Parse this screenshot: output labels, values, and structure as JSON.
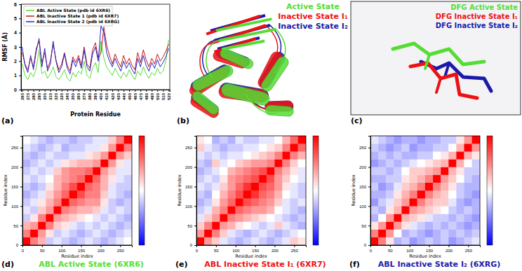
{
  "chart_data": [
    {
      "type": "line",
      "panel_label": "(a)",
      "x_label": "Protein Residue",
      "y_label": "RMSF (Å)",
      "x": [
        260,
        265,
        270,
        275,
        280,
        285,
        290,
        295,
        300,
        305,
        310,
        315,
        320,
        325,
        330,
        335,
        340,
        345,
        350,
        355,
        360,
        365,
        370,
        375,
        380,
        385,
        390,
        395,
        400,
        405,
        410,
        415,
        420,
        425,
        430,
        435,
        440,
        445,
        450,
        455,
        460,
        465,
        470,
        475,
        480,
        485,
        490,
        495,
        500,
        505,
        510,
        515,
        520
      ],
      "xlim": [
        258,
        522
      ],
      "xticks": [
        260,
        270,
        280,
        290,
        300,
        310,
        320,
        330,
        340,
        350,
        360,
        370,
        380,
        390,
        400,
        410,
        420,
        430,
        440,
        450,
        460,
        470,
        480,
        490,
        500,
        510,
        520
      ],
      "ylim": [
        0,
        6
      ],
      "yticks": [
        0,
        1,
        2,
        3,
        4,
        5,
        6
      ],
      "legend": "upper left",
      "series": [
        {
          "name": "ABL Active State (pdb id 6XR6)",
          "color": "#55dd33",
          "values": [
            1.8,
            1.0,
            0.7,
            1.2,
            0.9,
            1.5,
            2.8,
            1.1,
            1.3,
            0.8,
            1.1,
            1.6,
            0.9,
            0.7,
            1.0,
            1.4,
            0.8,
            0.6,
            1.2,
            0.9,
            1.3,
            1.1,
            2.0,
            1.0,
            0.8,
            1.5,
            1.9,
            1.2,
            3.4,
            2.2,
            1.6,
            1.3,
            1.0,
            1.5,
            1.1,
            0.8,
            1.2,
            0.9,
            1.4,
            1.0,
            0.7,
            1.3,
            1.0,
            1.6,
            1.1,
            0.8,
            1.2,
            1.0,
            1.5,
            1.1,
            1.3,
            2.0,
            3.5
          ]
        },
        {
          "name": "ABL Inactive State 1 (pdb id 6XR7)",
          "color": "#c81414",
          "values": [
            2.6,
            1.8,
            1.4,
            2.2,
            1.6,
            2.9,
            3.4,
            1.9,
            2.6,
            1.5,
            2.0,
            3.2,
            2.1,
            1.4,
            1.8,
            2.6,
            1.7,
            1.3,
            2.3,
            1.9,
            2.4,
            1.7,
            3.0,
            1.8,
            1.5,
            2.8,
            3.3,
            2.2,
            2.6,
            4.4,
            3.1,
            2.4,
            1.8,
            2.5,
            2.0,
            1.6,
            2.4,
            1.8,
            2.2,
            1.7,
            1.4,
            2.6,
            1.9,
            2.8,
            2.1,
            1.6,
            2.2,
            1.8,
            2.5,
            2.0,
            2.3,
            2.7,
            3.2
          ]
        },
        {
          "name": "ABL Inactive State 2 (pdb id 6XRG)",
          "color": "#2424c8",
          "values": [
            3.0,
            1.7,
            1.2,
            2.4,
            1.4,
            2.7,
            3.6,
            1.6,
            2.9,
            1.3,
            1.8,
            3.4,
            2.0,
            1.2,
            1.6,
            2.5,
            1.5,
            1.1,
            2.1,
            1.6,
            2.2,
            1.5,
            2.8,
            1.6,
            1.3,
            2.5,
            3.0,
            2.0,
            4.5,
            4.0,
            2.6,
            2.0,
            1.6,
            2.2,
            1.7,
            1.3,
            2.0,
            1.5,
            1.9,
            1.4,
            1.1,
            2.2,
            1.6,
            2.4,
            1.7,
            1.3,
            1.9,
            1.5,
            2.1,
            1.6,
            1.9,
            2.3,
            2.9
          ]
        }
      ]
    },
    {
      "type": "heatmap",
      "panel_label": "(d)",
      "title": "ABL Active State (6XR6)",
      "x_label": "Residue index",
      "y_label": "Residue index",
      "bins": [
        0,
        20,
        40,
        60,
        80,
        100,
        120,
        140,
        160,
        180,
        200,
        220,
        240,
        260,
        280
      ],
      "xlim": [
        0,
        280
      ],
      "ylim": [
        0,
        280
      ],
      "xticks": [
        0,
        50,
        100,
        150,
        200,
        250
      ],
      "yticks": [
        0,
        50,
        100,
        150,
        200,
        250
      ],
      "color_range": [
        -1,
        1
      ],
      "cells": [
        [
          1,
          0.5,
          0.3,
          -0.2,
          -0.1,
          -0.2,
          -0.3,
          -0.2,
          -0.1,
          -0.2,
          -0.3,
          -0.2,
          -0.1,
          0
        ],
        [
          0.5,
          1,
          0.4,
          0.1,
          -0.2,
          -0.1,
          -0.2,
          -0.3,
          -0.2,
          -0.1,
          -0.2,
          -0.3,
          -0.2,
          -0.1
        ],
        [
          0.3,
          0.4,
          1,
          0.5,
          0.2,
          0.1,
          -0.1,
          -0.2,
          -0.1,
          -0.2,
          -0.1,
          -0.2,
          -0.3,
          -0.2
        ],
        [
          -0.2,
          0.1,
          0.5,
          1,
          0.4,
          0.3,
          0.2,
          0.1,
          0,
          -0.1,
          -0.2,
          -0.1,
          -0.2,
          -0.3
        ],
        [
          -0.1,
          -0.2,
          0.2,
          0.4,
          1,
          0.5,
          0.4,
          0.3,
          0.3,
          0.2,
          -0.1,
          -0.2,
          -0.1,
          -0.2
        ],
        [
          -0.2,
          -0.1,
          0.1,
          0.3,
          0.5,
          1,
          0.6,
          0.5,
          0.4,
          0.4,
          0.1,
          -0.2,
          -0.3,
          -0.2
        ],
        [
          -0.3,
          -0.2,
          -0.1,
          0.2,
          0.4,
          0.6,
          1,
          0.7,
          0.5,
          0.5,
          0.2,
          -0.1,
          -0.2,
          -0.3
        ],
        [
          -0.2,
          -0.3,
          -0.2,
          0.1,
          0.3,
          0.5,
          0.7,
          1,
          0.6,
          0.5,
          0.3,
          -0.1,
          -0.2,
          -0.2
        ],
        [
          -0.1,
          -0.2,
          -0.1,
          0,
          0.3,
          0.4,
          0.5,
          0.6,
          1,
          0.6,
          0.3,
          0.1,
          -0.1,
          -0.2
        ],
        [
          -0.2,
          -0.1,
          -0.2,
          -0.1,
          0.2,
          0.4,
          0.5,
          0.5,
          0.6,
          1,
          0.4,
          0.2,
          -0.1,
          -0.1
        ],
        [
          -0.3,
          -0.2,
          -0.1,
          -0.2,
          -0.1,
          0.1,
          0.2,
          0.3,
          0.3,
          0.4,
          1,
          0.4,
          0.1,
          -0.1
        ],
        [
          -0.2,
          -0.3,
          -0.2,
          -0.1,
          -0.2,
          -0.2,
          -0.1,
          -0.1,
          0.1,
          0.2,
          0.4,
          1,
          0.4,
          0.2
        ],
        [
          -0.1,
          -0.2,
          -0.3,
          -0.2,
          -0.1,
          -0.3,
          -0.2,
          -0.2,
          -0.1,
          -0.1,
          0.1,
          0.4,
          1,
          0.5
        ],
        [
          0,
          -0.1,
          -0.2,
          -0.3,
          -0.2,
          -0.2,
          -0.3,
          -0.2,
          -0.2,
          -0.1,
          -0.1,
          0.2,
          0.5,
          1
        ]
      ]
    },
    {
      "type": "heatmap",
      "panel_label": "(e)",
      "title": "ABL Inactive State I₁ (6XR7)",
      "x_label": "Residue index",
      "y_label": "Residue index",
      "bins": [
        0,
        20,
        40,
        60,
        80,
        100,
        120,
        140,
        160,
        180,
        200,
        220,
        240,
        260,
        280
      ],
      "xlim": [
        0,
        280
      ],
      "ylim": [
        0,
        280
      ],
      "xticks": [
        0,
        50,
        100,
        150,
        200,
        250
      ],
      "yticks": [
        0,
        50,
        100,
        150,
        200,
        250
      ],
      "color_range": [
        -1,
        1
      ],
      "cells": [
        [
          1,
          0.4,
          0.2,
          -0.1,
          -0.2,
          -0.3,
          -0.2,
          -0.1,
          -0.2,
          -0.3,
          -0.2,
          -0.1,
          0.2,
          0.1
        ],
        [
          0.4,
          1,
          0.5,
          0.2,
          -0.1,
          -0.2,
          -0.3,
          -0.2,
          -0.1,
          -0.2,
          -0.3,
          -0.2,
          -0.1,
          0
        ],
        [
          0.2,
          0.5,
          1,
          0.4,
          0.3,
          0.1,
          0,
          -0.1,
          -0.2,
          -0.1,
          0.2,
          -0.1,
          -0.2,
          -0.3
        ],
        [
          -0.1,
          0.2,
          0.4,
          1,
          0.5,
          0.4,
          0.3,
          0.2,
          0.1,
          0,
          -0.1,
          -0.2,
          -0.3,
          -0.2
        ],
        [
          -0.2,
          -0.1,
          0.3,
          0.5,
          1,
          0.6,
          0.5,
          0.4,
          0.4,
          0.3,
          0,
          -0.1,
          -0.2,
          -0.3
        ],
        [
          -0.3,
          -0.2,
          0.1,
          0.4,
          0.6,
          1,
          0.7,
          0.6,
          0.5,
          0.4,
          0.2,
          -0.1,
          -0.2,
          -0.1
        ],
        [
          -0.2,
          -0.3,
          0,
          0.3,
          0.5,
          0.7,
          1,
          0.8,
          0.6,
          0.5,
          0.3,
          0,
          -0.1,
          -0.2
        ],
        [
          -0.1,
          -0.2,
          -0.1,
          0.2,
          0.4,
          0.6,
          0.8,
          1,
          0.7,
          0.6,
          0.4,
          0.1,
          -0.1,
          -0.2
        ],
        [
          -0.2,
          -0.1,
          -0.2,
          0.1,
          0.4,
          0.5,
          0.6,
          0.7,
          1,
          0.7,
          0.4,
          0.2,
          0,
          -0.1
        ],
        [
          -0.3,
          -0.2,
          -0.1,
          0,
          0.3,
          0.4,
          0.5,
          0.6,
          0.7,
          1,
          0.5,
          0.3,
          0.1,
          -0.1
        ],
        [
          -0.2,
          -0.3,
          0.2,
          -0.1,
          0,
          0.2,
          0.3,
          0.4,
          0.4,
          0.5,
          1,
          0.5,
          0.2,
          0
        ],
        [
          -0.1,
          -0.2,
          -0.1,
          -0.2,
          -0.1,
          -0.1,
          0,
          0.1,
          0.2,
          0.3,
          0.5,
          1,
          0.5,
          0.3
        ],
        [
          0.2,
          -0.1,
          -0.2,
          -0.3,
          -0.2,
          -0.2,
          -0.1,
          -0.1,
          0,
          0.1,
          0.2,
          0.5,
          1,
          0.6
        ],
        [
          0.1,
          0,
          -0.3,
          -0.2,
          -0.3,
          -0.1,
          -0.2,
          -0.2,
          -0.1,
          -0.1,
          0,
          0.3,
          0.6,
          1
        ]
      ]
    },
    {
      "type": "heatmap",
      "panel_label": "(f)",
      "title": "ABL Inactive State I₂ (6XRG)",
      "x_label": "Residue index",
      "y_label": "Residue index",
      "bins": [
        0,
        20,
        40,
        60,
        80,
        100,
        120,
        140,
        160,
        180,
        200,
        220,
        240,
        260,
        280
      ],
      "xlim": [
        0,
        280
      ],
      "ylim": [
        0,
        280
      ],
      "xticks": [
        0,
        50,
        100,
        150,
        200,
        250
      ],
      "yticks": [
        0,
        50,
        100,
        150,
        200,
        250
      ],
      "color_range": [
        -1,
        1
      ],
      "cells": [
        [
          1,
          0.5,
          0.1,
          -0.3,
          -0.2,
          -0.4,
          -0.3,
          -0.2,
          -0.3,
          -0.2,
          -0.4,
          -0.3,
          -0.2,
          -0.1
        ],
        [
          0.5,
          1,
          0.4,
          0,
          -0.3,
          -0.2,
          -0.3,
          -0.4,
          -0.3,
          -0.2,
          -0.3,
          -0.2,
          -0.3,
          -0.2
        ],
        [
          0.1,
          0.4,
          1,
          0.4,
          0.1,
          -0.1,
          -0.2,
          -0.3,
          -0.2,
          -0.3,
          -0.2,
          -0.3,
          -0.4,
          -0.3
        ],
        [
          -0.3,
          0,
          0.4,
          1,
          0.3,
          0.2,
          0.1,
          -0.1,
          -0.2,
          -0.2,
          -0.3,
          -0.2,
          -0.3,
          -0.4
        ],
        [
          -0.2,
          -0.3,
          0.1,
          0.3,
          1,
          0.4,
          0.3,
          0.2,
          0.1,
          0,
          -0.2,
          -0.3,
          -0.2,
          -0.3
        ],
        [
          -0.4,
          -0.2,
          -0.1,
          0.2,
          0.4,
          1,
          0.5,
          0.3,
          0.2,
          0.2,
          -0.1,
          -0.3,
          -0.4,
          -0.3
        ],
        [
          -0.3,
          -0.3,
          -0.2,
          0.1,
          0.3,
          0.5,
          1,
          0.5,
          0.3,
          0.2,
          0,
          -0.2,
          -0.3,
          -0.4
        ],
        [
          -0.2,
          -0.4,
          -0.3,
          -0.1,
          0.2,
          0.3,
          0.5,
          1,
          0.5,
          0.3,
          0.1,
          -0.2,
          -0.3,
          -0.3
        ],
        [
          -0.3,
          -0.3,
          -0.2,
          -0.2,
          0.1,
          0.2,
          0.3,
          0.5,
          1,
          0.4,
          0.2,
          0,
          -0.2,
          -0.3
        ],
        [
          -0.2,
          -0.2,
          -0.3,
          -0.2,
          0,
          0.2,
          0.2,
          0.3,
          0.4,
          1,
          0.3,
          0.1,
          -0.2,
          -0.2
        ],
        [
          -0.4,
          -0.3,
          -0.2,
          -0.3,
          -0.2,
          -0.1,
          0,
          0.1,
          0.2,
          0.3,
          1,
          0.3,
          0,
          -0.2
        ],
        [
          -0.3,
          -0.2,
          -0.3,
          -0.2,
          -0.3,
          -0.3,
          -0.2,
          -0.2,
          0,
          0.1,
          0.3,
          1,
          0.3,
          0.1
        ],
        [
          -0.2,
          -0.3,
          -0.4,
          -0.3,
          -0.2,
          -0.4,
          -0.3,
          -0.3,
          -0.2,
          -0.2,
          0,
          0.3,
          1,
          0.4
        ],
        [
          -0.1,
          -0.2,
          -0.3,
          -0.4,
          -0.3,
          -0.3,
          -0.4,
          -0.3,
          -0.3,
          -0.2,
          -0.2,
          0.1,
          0.4,
          1
        ]
      ]
    }
  ],
  "structure_panels": [
    {
      "panel_label": "(b)",
      "legend": [
        {
          "text": "Active State",
          "color": "#55dd33"
        },
        {
          "text": "Inactive State I₁",
          "color": "#ee1111"
        },
        {
          "text": "Inactive State I₂",
          "color": "#1a1aa8"
        }
      ]
    },
    {
      "panel_label": "(c)",
      "legend": [
        {
          "text": "DFG Active State",
          "color": "#55dd33"
        },
        {
          "text": "DFG Inactive State I₁",
          "color": "#ee1111"
        },
        {
          "text": "DFG Inactive State I₂",
          "color": "#1a1aa8"
        }
      ]
    }
  ]
}
